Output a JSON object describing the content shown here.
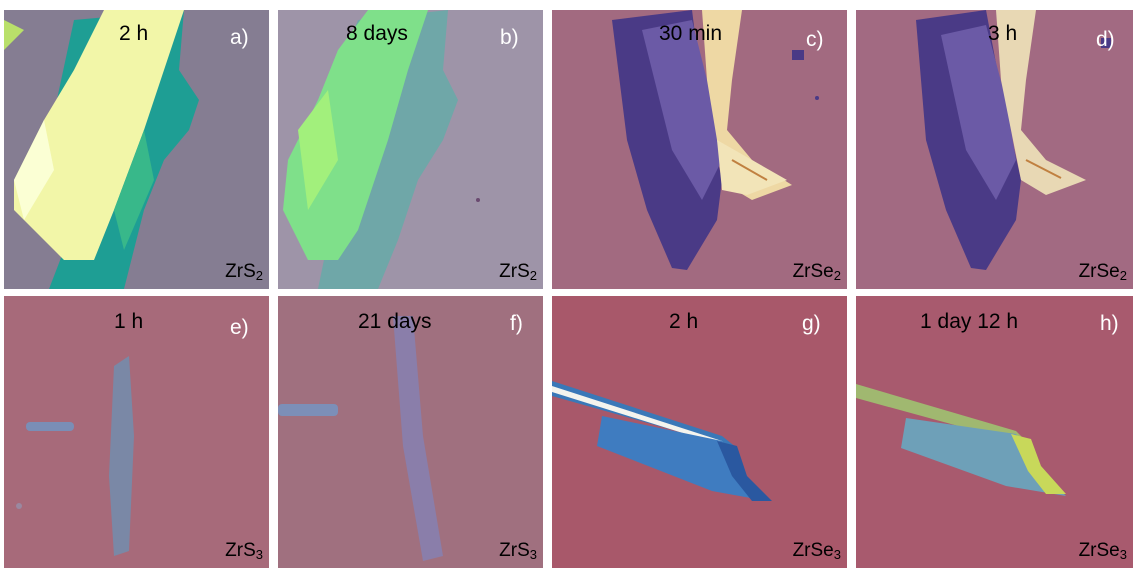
{
  "panels": [
    {
      "letter": "a)",
      "time": "2 h",
      "material_base": "ZrS",
      "subscript": "2"
    },
    {
      "letter": "b)",
      "time": "8 days",
      "material_base": "ZrS",
      "subscript": "2"
    },
    {
      "letter": "c)",
      "time": "30 min",
      "material_base": "ZrSe",
      "subscript": "2"
    },
    {
      "letter": "d)",
      "time": "3 h",
      "material_base": "ZrSe",
      "subscript": "2"
    },
    {
      "letter": "e)",
      "time": "1 h",
      "material_base": "ZrS",
      "subscript": "3"
    },
    {
      "letter": "f)",
      "time": "21 days",
      "material_base": "ZrS",
      "subscript": "3"
    },
    {
      "letter": "g)",
      "time": "2 h",
      "material_base": "ZrSe",
      "subscript": "3"
    },
    {
      "letter": "h)",
      "time": "1 day 12 h",
      "material_base": "ZrSe",
      "subscript": "3"
    }
  ],
  "colors": {
    "substrate_grey": "#8b8298",
    "substrate_pink": "#a26a80",
    "substrate_rose": "#a8586a",
    "flake_yellow": "#f2f6a8",
    "flake_teal": "#1e9e94",
    "flake_blue": "#3f63b0",
    "flake_purple": "#4a3a86"
  }
}
